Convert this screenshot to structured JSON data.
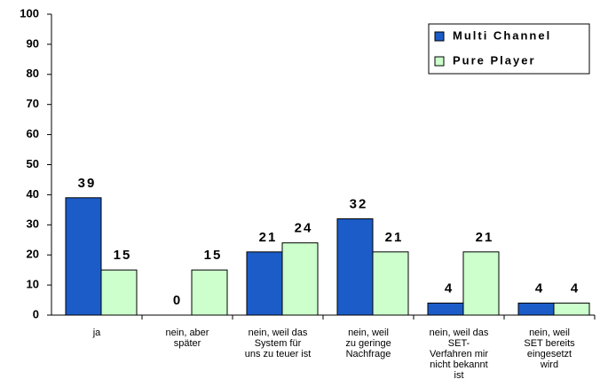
{
  "chart_data": {
    "type": "bar",
    "categories": [
      [
        "ja"
      ],
      [
        "nein, aber",
        "später"
      ],
      [
        "nein, weil das",
        "System für",
        "uns zu teuer ist"
      ],
      [
        "nein, weil",
        "zu geringe",
        "Nachfrage"
      ],
      [
        "nein, weil das",
        "SET-",
        "Verfahren mir",
        "nicht bekannt",
        "ist"
      ],
      [
        "nein, weil",
        "SET bereits",
        "eingesetzt",
        "wird"
      ]
    ],
    "series": [
      {
        "name": "Multi Channel",
        "color": "#1c5cc8",
        "values": [
          39,
          0,
          21,
          32,
          4,
          4
        ]
      },
      {
        "name": "Pure Player",
        "color": "#ccffcc",
        "values": [
          15,
          15,
          24,
          21,
          21,
          4
        ]
      }
    ],
    "ylim": [
      0,
      100
    ],
    "yticks": [
      0,
      10,
      20,
      30,
      40,
      50,
      60,
      70,
      80,
      90,
      100
    ],
    "legend": "upper right"
  }
}
